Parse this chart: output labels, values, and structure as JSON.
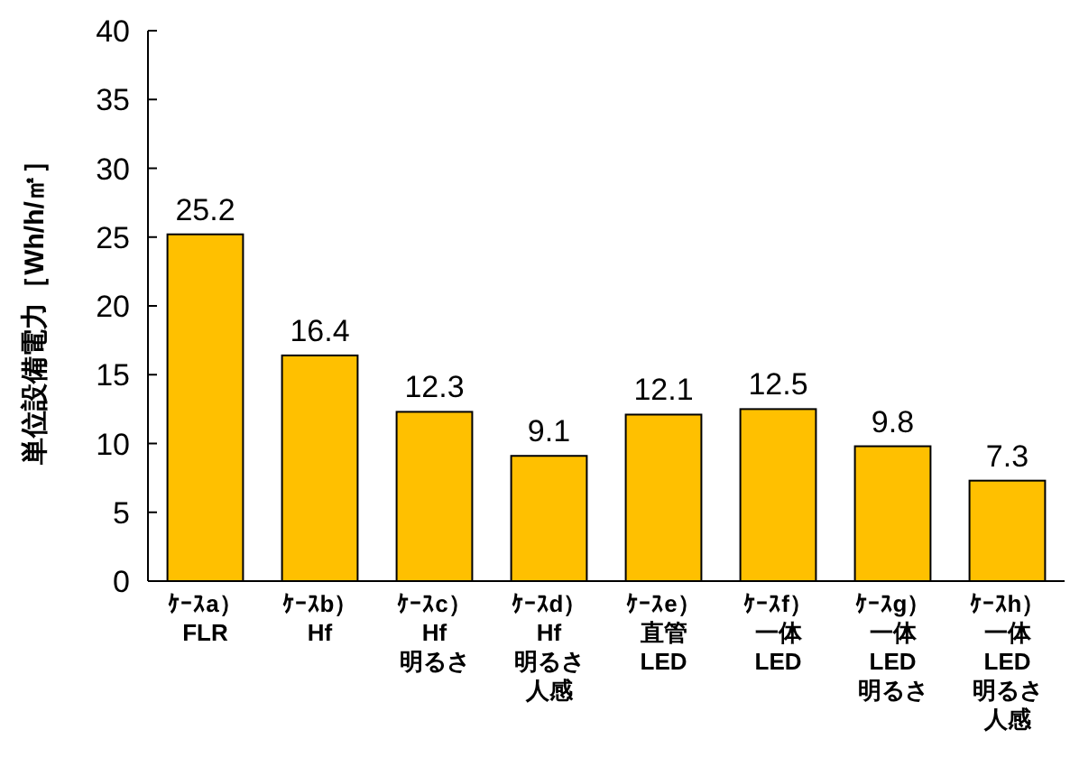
{
  "chart_data": {
    "type": "bar",
    "ylabel": "単位設備電力［Wh/h/㎡］",
    "categories": [
      "ｹｰｽa）\nFLR",
      "ｹｰｽb）\nHf",
      "ｹｰｽc）\nHf\n明るさ",
      "ｹｰｽd）\nHf\n明るさ人感",
      "ｹｰｽe）直管\nLED",
      "ｹｰｽf）一体\nLED",
      "ｹｰｽg）一体\nLED\n明るさ",
      "ｹｰｽh）一体\nLED\n明るさ人感"
    ],
    "values": [
      25.2,
      16.4,
      12.3,
      9.1,
      12.1,
      12.5,
      9.8,
      7.3
    ],
    "color": "#ffc000",
    "ylim": [
      0,
      40
    ],
    "yticks": [
      0,
      5,
      10,
      15,
      20,
      25,
      30,
      35,
      40
    ],
    "data_labels": true,
    "grid": false
  }
}
